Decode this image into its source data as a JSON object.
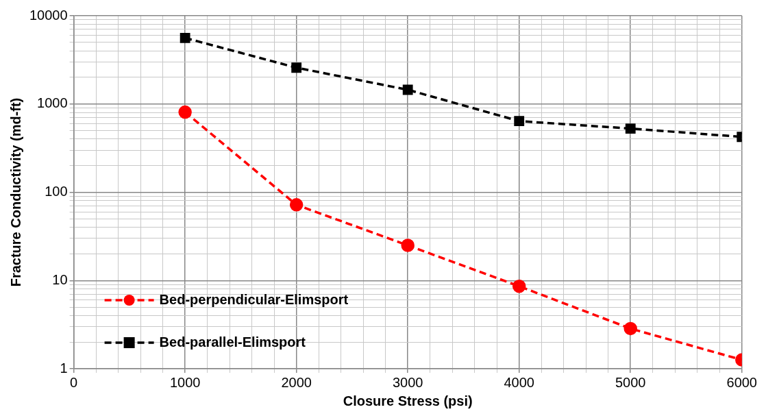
{
  "chart_data": {
    "type": "line",
    "xlabel": "Closure Stress (psi)",
    "ylabel": "Fracture Conductivity (md-ft)",
    "x": [
      1000,
      2000,
      3000,
      4000,
      5000,
      6000
    ],
    "series": [
      {
        "name": "Bed-perpendicular-Elimsport",
        "color": "#ff0000",
        "marker": "circle",
        "values": [
          810,
          72,
          25,
          8.6,
          2.85,
          1.26
        ]
      },
      {
        "name": "Bed-parallel-Elimsport",
        "color": "#000000",
        "marker": "square",
        "values": [
          5600,
          2580,
          1450,
          640,
          527,
          424
        ]
      }
    ],
    "xlim": [
      0,
      6000
    ],
    "xticks": [
      0,
      1000,
      2000,
      3000,
      4000,
      5000,
      6000
    ],
    "ylim": [
      1,
      10000
    ],
    "yticks": [
      1,
      10,
      100,
      1000,
      10000
    ],
    "log": "y",
    "grid": true,
    "legend": "bottom left",
    "line_style": "dashed"
  }
}
